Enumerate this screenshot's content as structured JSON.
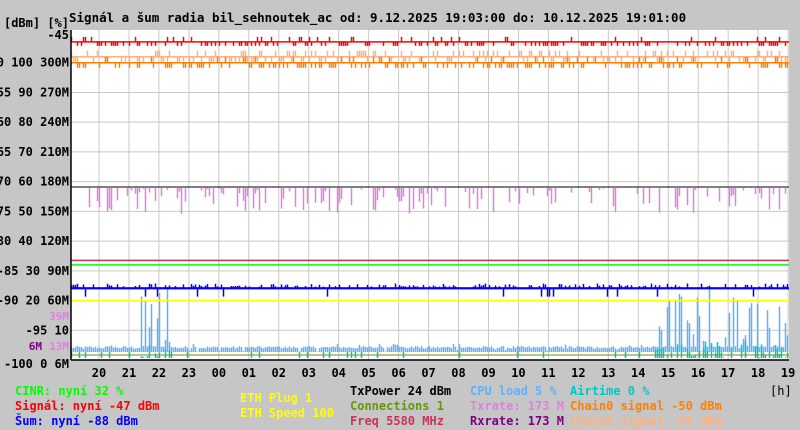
{
  "chart_data": {
    "type": "line",
    "title": "Signál a šum radia bil_sehnoutek_ac od: 9.12.2025 19:03:00 do: 10.12.2025 19:01:00",
    "axis_units_label": "[dBm] [%]",
    "xlabel": "[h]",
    "x_ticks": [
      "20",
      "21",
      "22",
      "23",
      "00",
      "01",
      "02",
      "03",
      "04",
      "05",
      "06",
      "07",
      "08",
      "09",
      "10",
      "11",
      "12",
      "13",
      "14",
      "15",
      "16",
      "17",
      "18",
      "19"
    ],
    "y_ticks_dbm": [
      "-45",
      "-50",
      "-55",
      "-60",
      "-65",
      "-70",
      "-75",
      "-80",
      "-85",
      "-90",
      "-95",
      "-100"
    ],
    "y_ticks_pct": [
      "",
      "100",
      "90",
      "80",
      "70",
      "60",
      "50",
      "40",
      "30",
      "20",
      "10",
      "0"
    ],
    "y_ticks_rate": [
      "",
      "300M",
      "270M",
      "240M",
      "210M",
      "180M",
      "150M",
      "120M",
      "90M",
      "60M",
      "",
      "6M"
    ],
    "rate_marks": [
      {
        "label": "39M",
        "color": "#e080e0"
      },
      {
        "label": "13M",
        "color": "#e080e0"
      },
      {
        "label": "6M",
        "color": "#800080"
      }
    ],
    "ylim_dbm": [
      -100,
      -45
    ],
    "grid": true,
    "series": [
      {
        "name": "Signal",
        "color": "#ff0000",
        "typical": -47
      },
      {
        "name": "Chain0",
        "color": "#ff8000",
        "typical": -50
      },
      {
        "name": "Chain1",
        "color": "#ffb080",
        "typical": -49
      },
      {
        "name": "Noise",
        "color": "#0000ff",
        "typical": -88
      },
      {
        "name": "CINR",
        "color": "#00ff00",
        "typical_pct": 32
      },
      {
        "name": "Txrate",
        "color": "#e080e0",
        "typical_mbps": 173
      },
      {
        "name": "Rxrate",
        "color": "#800080",
        "typical_mbps": 173
      },
      {
        "name": "CPU load",
        "color": "#60b0ff",
        "typical_pct": 5
      },
      {
        "name": "Airtime",
        "color": "#00c8c8",
        "typical_pct": 0
      },
      {
        "name": "ETH Speed",
        "color": "#ffff00",
        "value": 100
      },
      {
        "name": "Freq",
        "color": "#d03060",
        "value": 5580
      },
      {
        "name": "Connections",
        "color": "#669900",
        "value": 1
      }
    ]
  },
  "legend": {
    "cinr": "CINR: nyní 32 %",
    "signal": "Signál: nyní -47 dBm",
    "noise": "Šum: nyní -88 dBm",
    "eth_plug": "ETH Plug 1",
    "eth_speed": "ETH Speed 100",
    "txpower": "TxPower 24 dBm",
    "connections": "Connections 1",
    "freq": "Freq 5580 MHz",
    "cpu": "CPU load 5 %",
    "txrate": "Txrate: 173 M",
    "rxrate": "Rxrate: 173 M",
    "airtime": "Airtime 0 %",
    "chain0": "Chain0 signal -50 dBm",
    "chain1": "Chain1 signal -50 dBm"
  },
  "colors": {
    "cinr": "#00ff00",
    "signal": "#ff0000",
    "noise": "#0000ff",
    "eth": "#ffff00",
    "txpower": "#000000",
    "connections": "#669900",
    "freq": "#d03060",
    "cpu": "#60b0ff",
    "txrate": "#e080e0",
    "rxrate": "#800080",
    "airtime": "#00c8c8",
    "chain0": "#ff8000",
    "chain1": "#ffb080"
  }
}
